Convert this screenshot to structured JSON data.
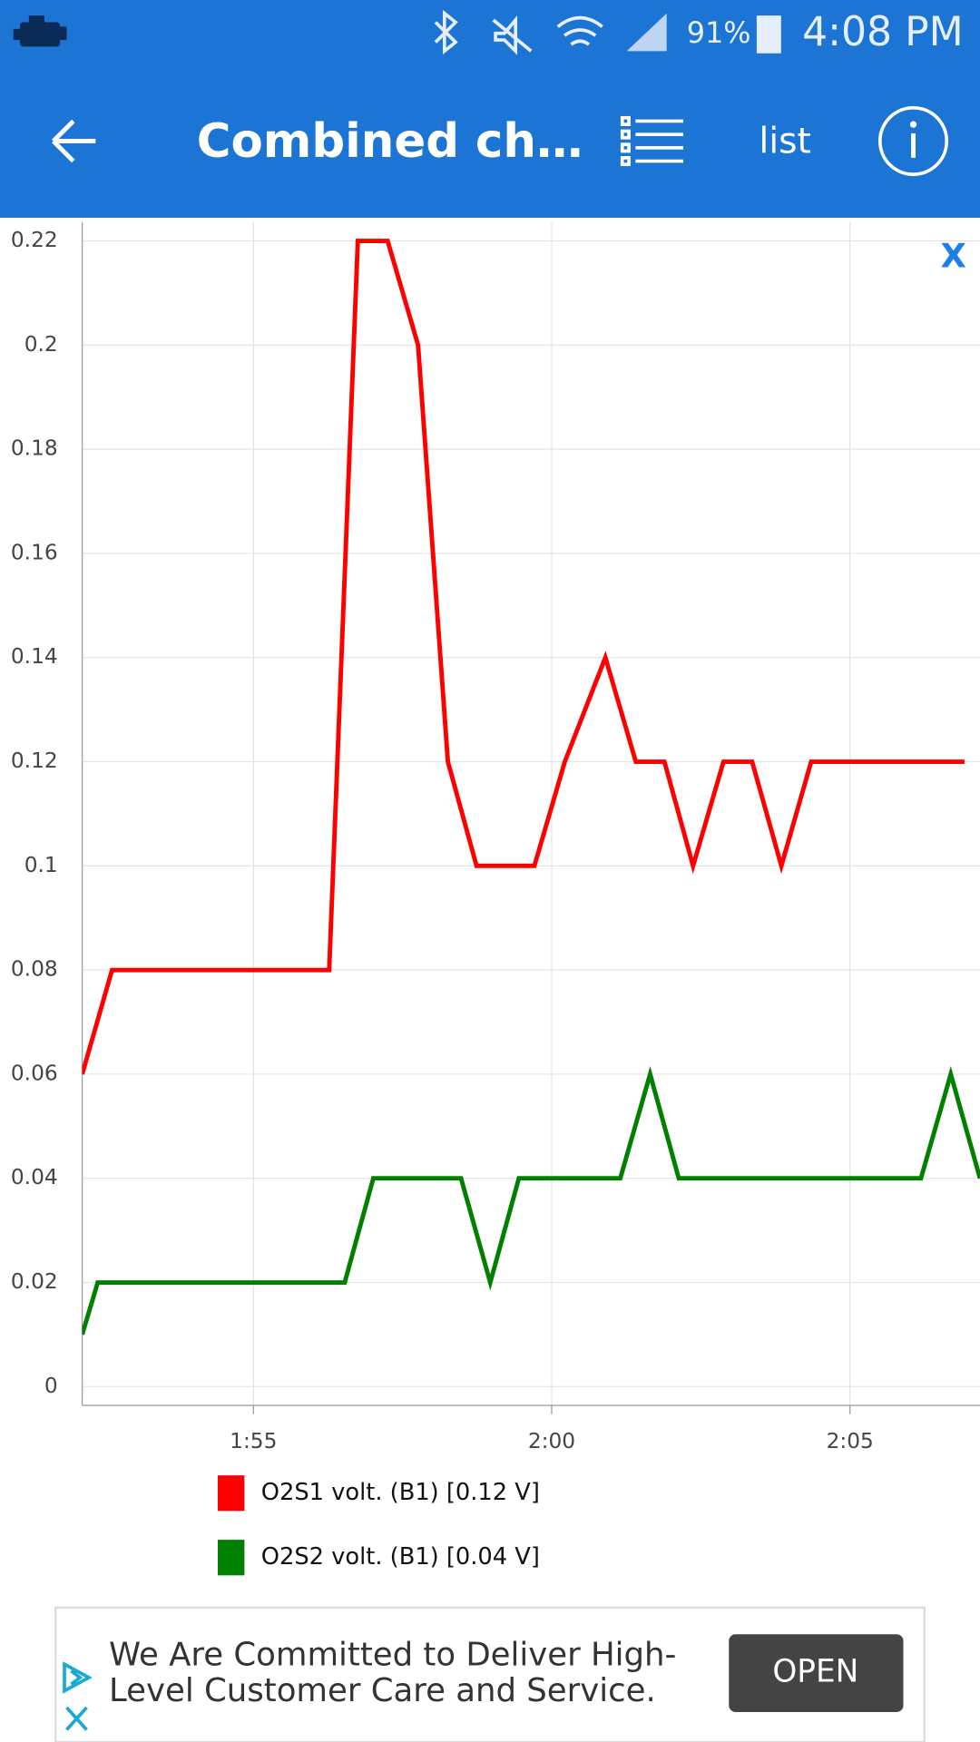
{
  "status_bar": {
    "battery": "91%",
    "time": "4:08 PM"
  },
  "app_bar": {
    "title": "Combined ch…",
    "list_button": "list"
  },
  "chart_data": {
    "type": "line",
    "close_button": "X",
    "xlim": [
      112.13,
      127.18
    ],
    "xticks": [
      {
        "value": 115,
        "label": "1:55"
      },
      {
        "value": 120,
        "label": "2:00"
      },
      {
        "value": 125,
        "label": "2:05"
      }
    ],
    "ylim": [
      -0.0036,
      0.2236
    ],
    "yticks": [
      0,
      0.02,
      0.04,
      0.06,
      0.08,
      0.1,
      0.12,
      0.14,
      0.16,
      0.18,
      0.2,
      0.22
    ],
    "grid": true,
    "series": [
      {
        "name": "O2S1 volt. (B1) [0.12 V]",
        "color": "#ff0000",
        "x": [
          112.13,
          112.63,
          116.27,
          116.75,
          117.25,
          117.76,
          118.26,
          118.74,
          119.71,
          120.22,
          120.9,
          121.41,
          121.89,
          122.37,
          122.88,
          123.36,
          123.85,
          124.35,
          126.92
        ],
        "values": [
          0.06,
          0.08,
          0.08,
          0.22,
          0.22,
          0.2,
          0.12,
          0.1,
          0.1,
          0.12,
          0.14,
          0.12,
          0.12,
          0.1,
          0.12,
          0.12,
          0.1,
          0.12,
          0.12
        ]
      },
      {
        "name": "O2S2 volt. (B1) [0.04 V]",
        "color": "#008000",
        "x": [
          112.13,
          112.39,
          116.53,
          117.01,
          118.48,
          118.97,
          119.45,
          121.15,
          121.65,
          122.13,
          126.19,
          126.69,
          127.18
        ],
        "values": [
          0.01,
          0.02,
          0.02,
          0.04,
          0.04,
          0.02,
          0.04,
          0.04,
          0.06,
          0.04,
          0.04,
          0.06,
          0.04
        ]
      }
    ]
  },
  "ad": {
    "lines": [
      "We Are Committed to Deliver High-",
      "Level Customer Care and Service."
    ],
    "button": "OPEN"
  }
}
